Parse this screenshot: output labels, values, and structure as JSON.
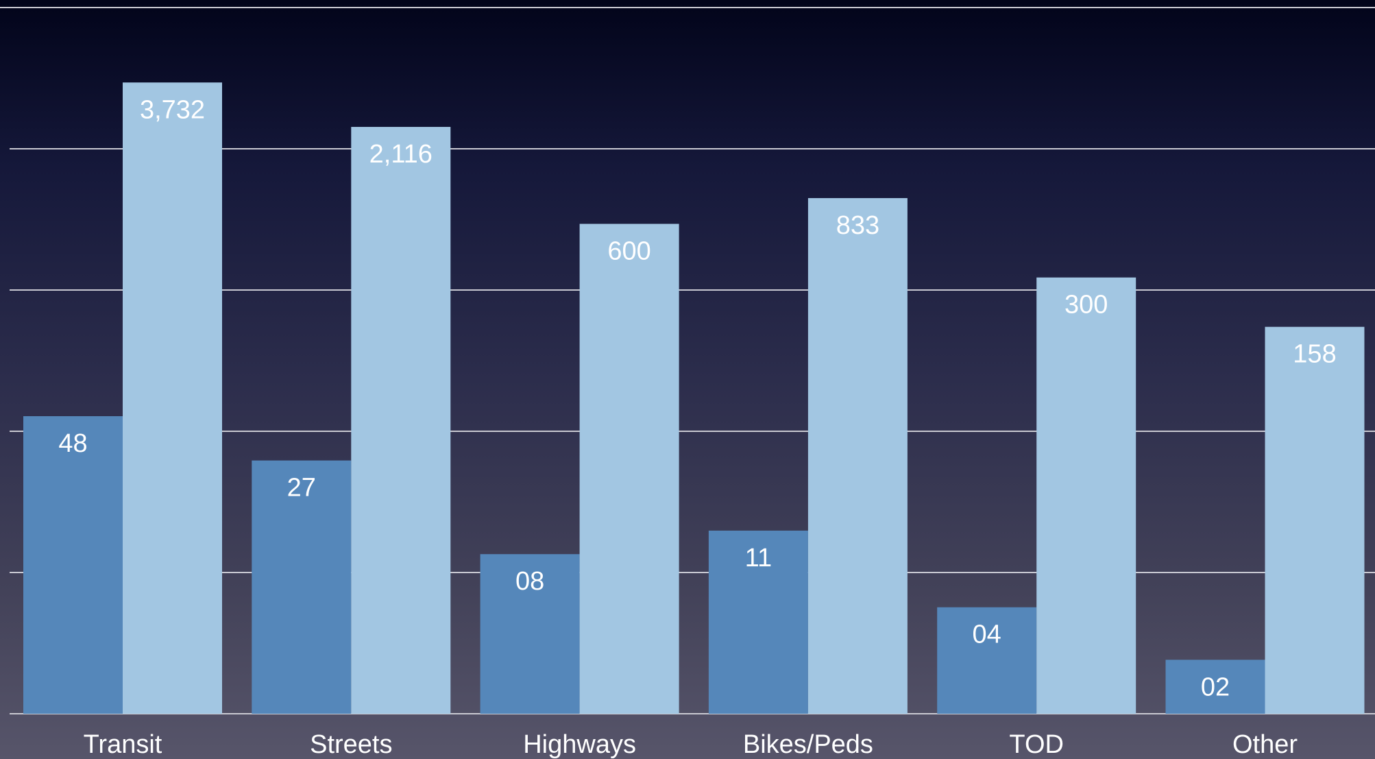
{
  "chart_data": {
    "type": "bar",
    "title": "",
    "xlabel": "",
    "ylabel": "",
    "categories": [
      "Transit",
      "Streets",
      "Highways",
      "Bikes/Peds",
      "TOD",
      "Other"
    ],
    "series": [
      {
        "values": [
          48,
          27,
          8,
          11,
          4,
          2
        ],
        "labels": [
          "48",
          "27",
          "08",
          "11",
          "04",
          "02"
        ],
        "color": "#5587ba"
      },
      {
        "values": [
          3732,
          2116,
          600,
          833,
          300,
          158
        ],
        "labels": [
          "3,732",
          "2,116",
          "600",
          "833",
          "300",
          "158"
        ],
        "color": "#a2c6e2"
      }
    ],
    "gridlines": 4,
    "grid": true,
    "legend": "none",
    "colors": {
      "gridline": "#c9c9d2",
      "label": "#ffffff"
    }
  }
}
